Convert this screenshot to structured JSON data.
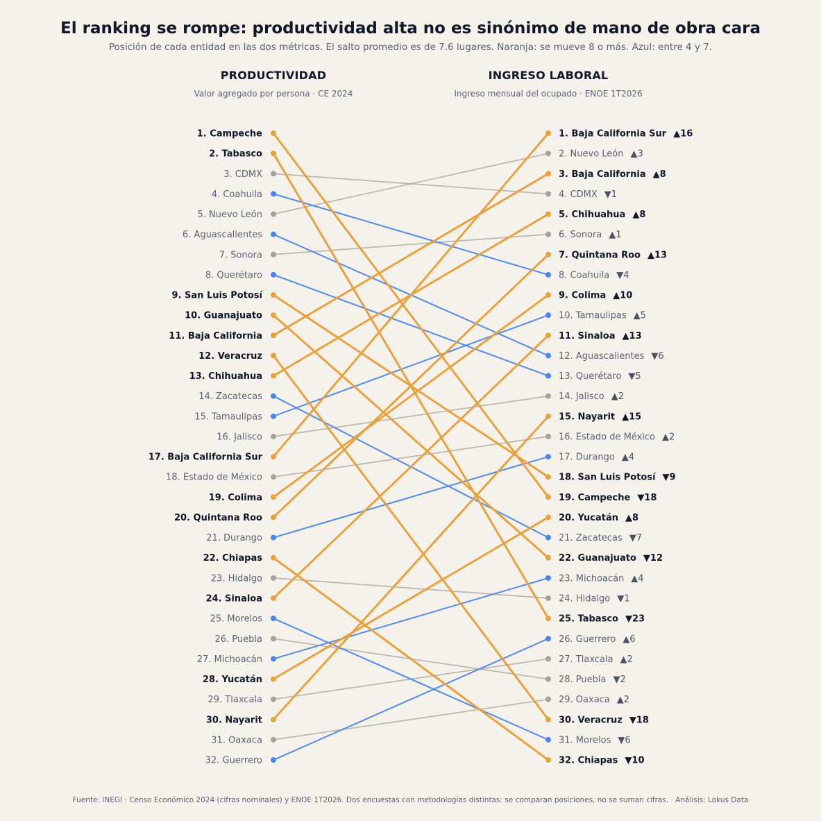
{
  "title": "El ranking se rompe: productividad alta no es sinónimo de mano de obra cara",
  "subtitle": "Posición de cada entidad en las dos métricas. El salto promedio es de 7.6 lugares. Naranja: se mueve 8 o más. Azul: entre 4 y 7.",
  "left_column": {
    "title": "PRODUCTIVIDAD",
    "subtitle": "Valor agregado por persona · CE 2024"
  },
  "right_column": {
    "title": "INGRESO LABORAL",
    "subtitle": "Ingreso mensual del ocupado · ENOE 1T2026"
  },
  "footer": "Fuente: INEGI · Censo Económico 2024 (cifras nominales) y ENOE 1T2026. Dos encuestas con metodologías distintas: se comparan posiciones, no se suman cifras.  ·  Análisis: Lokus Data",
  "colors": {
    "big_move": "#e8a23d",
    "medium_move": "#4a86e8",
    "small_move": "#a8a196",
    "text_dark": "#111827",
    "text_muted": "#5b6270"
  },
  "chart_data": {
    "type": "slope",
    "x": [
      "PRODUCTIVIDAD",
      "INGRESO LABORAL"
    ],
    "ylim": [
      1,
      32
    ],
    "series": [
      {
        "name": "Campeche",
        "values": [
          1,
          19
        ]
      },
      {
        "name": "Tabasco",
        "values": [
          2,
          25
        ]
      },
      {
        "name": "CDMX",
        "values": [
          3,
          4
        ]
      },
      {
        "name": "Coahuila",
        "values": [
          4,
          8
        ]
      },
      {
        "name": "Nuevo León",
        "values": [
          5,
          2
        ]
      },
      {
        "name": "Aguascalientes",
        "values": [
          6,
          12
        ]
      },
      {
        "name": "Sonora",
        "values": [
          7,
          6
        ]
      },
      {
        "name": "Querétaro",
        "values": [
          8,
          13
        ]
      },
      {
        "name": "San Luis Potosí",
        "values": [
          9,
          18
        ]
      },
      {
        "name": "Guanajuato",
        "values": [
          10,
          22
        ]
      },
      {
        "name": "Baja California",
        "values": [
          11,
          3
        ]
      },
      {
        "name": "Veracruz",
        "values": [
          12,
          30
        ]
      },
      {
        "name": "Chihuahua",
        "values": [
          13,
          5
        ]
      },
      {
        "name": "Zacatecas",
        "values": [
          14,
          21
        ]
      },
      {
        "name": "Tamaulipas",
        "values": [
          15,
          10
        ]
      },
      {
        "name": "Jalisco",
        "values": [
          16,
          14
        ]
      },
      {
        "name": "Baja California Sur",
        "values": [
          17,
          1
        ]
      },
      {
        "name": "Estado de México",
        "values": [
          18,
          16
        ]
      },
      {
        "name": "Colima",
        "values": [
          19,
          9
        ]
      },
      {
        "name": "Quintana Roo",
        "values": [
          20,
          7
        ]
      },
      {
        "name": "Durango",
        "values": [
          21,
          17
        ]
      },
      {
        "name": "Chiapas",
        "values": [
          22,
          32
        ]
      },
      {
        "name": "Hidalgo",
        "values": [
          23,
          24
        ]
      },
      {
        "name": "Sinaloa",
        "values": [
          24,
          11
        ]
      },
      {
        "name": "Morelos",
        "values": [
          25,
          31
        ]
      },
      {
        "name": "Puebla",
        "values": [
          26,
          28
        ]
      },
      {
        "name": "Michoacán",
        "values": [
          27,
          23
        ]
      },
      {
        "name": "Yucatán",
        "values": [
          28,
          20
        ]
      },
      {
        "name": "Tlaxcala",
        "values": [
          29,
          27
        ]
      },
      {
        "name": "Nayarit",
        "values": [
          30,
          15
        ]
      },
      {
        "name": "Oaxaca",
        "values": [
          31,
          29
        ]
      },
      {
        "name": "Guerrero",
        "values": [
          32,
          26
        ]
      }
    ]
  }
}
